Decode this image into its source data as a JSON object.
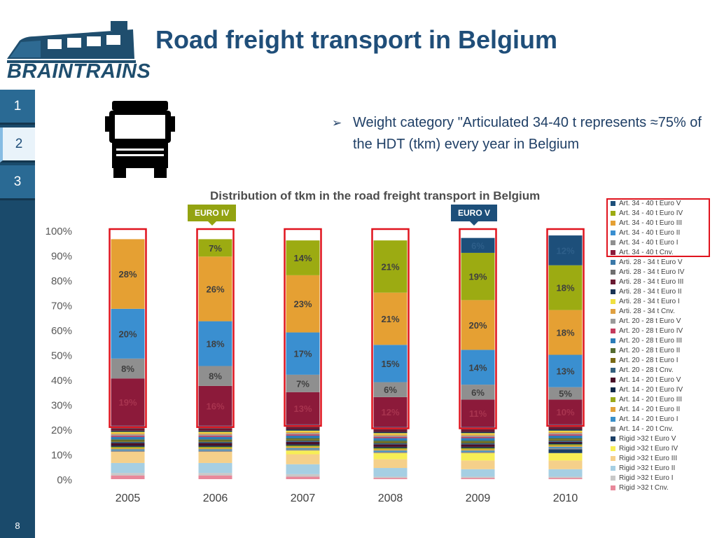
{
  "header": {
    "logo_text": "BRAINTRAINS",
    "title": "Road freight transport in Belgium"
  },
  "sidebar": {
    "items": [
      {
        "label": "1"
      },
      {
        "label": "2"
      },
      {
        "label": "3"
      }
    ],
    "active": 1,
    "page_number": "8"
  },
  "bullet": {
    "arrow": "➢",
    "text": "Weight category \"Articulated 34-40 t represents ≈75% of the HDT (tkm) every year in Belgium"
  },
  "badges": {
    "euro_iv": "EURO IV",
    "euro_v": "EURO V"
  },
  "colors": {
    "accent_title": "#1f4e79",
    "highlight_border": "#e0141e",
    "sidebar": "#1a4a6b"
  },
  "chart_data": {
    "type": "bar",
    "stacked": true,
    "title": "Distribution of tkm in the road freight transport in Belgium",
    "categories": [
      "2005",
      "2006",
      "2007",
      "2008",
      "2009",
      "2010"
    ],
    "ylim": [
      0,
      100
    ],
    "yticks": [
      "0%",
      "10%",
      "20%",
      "30%",
      "40%",
      "50%",
      "60%",
      "70%",
      "80%",
      "90%",
      "100%"
    ],
    "legend_position": "right",
    "highlighted_category": "Art. 34 - 40 t",
    "series": [
      {
        "name": "Rigid >32 t Cnv.",
        "color": "#e8889a",
        "values": [
          1.5,
          1.5,
          1.0,
          0.5,
          0.5,
          0.5
        ]
      },
      {
        "name": "Rigid >32 t Euro I",
        "color": "#c8c8c8",
        "values": [
          1.0,
          1.0,
          1.0,
          0.5,
          0.5,
          0.5
        ]
      },
      {
        "name": "Rigid >32 t Euro II",
        "color": "#a6cfe3",
        "values": [
          4.0,
          4.0,
          4.0,
          3.5,
          3.0,
          3.0
        ]
      },
      {
        "name": "Rigid >32 t Euro III",
        "color": "#f5d08a",
        "values": [
          4.5,
          4.5,
          4.0,
          3.5,
          3.5,
          3.5
        ]
      },
      {
        "name": "Rigid >32 t Euro IV",
        "color": "#f7ee55",
        "values": [
          0.0,
          0.0,
          1.5,
          2.5,
          3.0,
          3.0
        ]
      },
      {
        "name": "Rigid >32 t Euro V",
        "color": "#1b3f66",
        "values": [
          0.0,
          0.0,
          0.0,
          0.0,
          0.0,
          1.5
        ]
      },
      {
        "name": "Art. 14 - 20 t Cnv.",
        "color": "#8c8c8c",
        "values": [
          0.5,
          0.5,
          0.5,
          0.5,
          0.5,
          0.5
        ]
      },
      {
        "name": "Art. 14 - 20 t Euro I",
        "color": "#3a8fc8",
        "values": [
          0.5,
          0.5,
          0.5,
          0.5,
          0.5,
          0.5
        ]
      },
      {
        "name": "Art. 14 - 20 t Euro II",
        "color": "#e2a33a",
        "values": [
          0.5,
          0.5,
          0.5,
          0.5,
          0.5,
          0.5
        ]
      },
      {
        "name": "Art. 14 - 20 t Euro III",
        "color": "#9aa91a",
        "values": [
          0.5,
          0.5,
          0.5,
          0.5,
          0.5,
          0.5
        ]
      },
      {
        "name": "Art. 14 - 20 t Euro IV",
        "color": "#102a4a",
        "values": [
          0.5,
          0.5,
          0.5,
          0.5,
          0.5,
          0.5
        ]
      },
      {
        "name": "Art. 14 - 20 t Euro V",
        "color": "#4a1028",
        "values": [
          1.0,
          1.0,
          1.0,
          1.0,
          1.0,
          0.5
        ]
      },
      {
        "name": "Art. 20 - 28 t Cnv.",
        "color": "#34607e",
        "values": [
          0.5,
          0.5,
          0.5,
          0.5,
          0.5,
          0.5
        ]
      },
      {
        "name": "Art. 20 - 28 t Euro I",
        "color": "#7a6a14",
        "values": [
          0.5,
          0.5,
          0.5,
          0.5,
          0.5,
          0.5
        ]
      },
      {
        "name": "Art. 20 - 28 t Euro II",
        "color": "#556b2f",
        "values": [
          0.5,
          0.5,
          0.5,
          0.5,
          0.5,
          0.5
        ]
      },
      {
        "name": "Art. 20 - 28 t Euro III",
        "color": "#2b7cb8",
        "values": [
          1.0,
          1.0,
          1.0,
          1.0,
          1.0,
          1.0
        ]
      },
      {
        "name": "Art. 20 - 28 t Euro IV",
        "color": "#c43a5c",
        "values": [
          0.5,
          0.5,
          0.5,
          0.5,
          0.5,
          0.5
        ]
      },
      {
        "name": "Art. 20 - 28 t Euro V",
        "color": "#9a9a9a",
        "values": [
          0.5,
          0.5,
          0.5,
          0.5,
          0.5,
          0.5
        ]
      },
      {
        "name": "Arti. 28 - 34 t Cnv.",
        "color": "#e0a040",
        "values": [
          0.5,
          0.5,
          0.5,
          0.5,
          0.5,
          0.5
        ]
      },
      {
        "name": "Arti. 28 - 34 t Euro I",
        "color": "#f0e040",
        "values": [
          0.5,
          0.5,
          0.5,
          0.5,
          0.5,
          0.5
        ]
      },
      {
        "name": "Arti. 28 - 34 t Euro II",
        "color": "#1a3355",
        "values": [
          0.5,
          0.5,
          0.5,
          0.5,
          0.5,
          0.5
        ]
      },
      {
        "name": "Arti. 28 - 34 t Euro III",
        "color": "#6a1a32",
        "values": [
          1.0,
          1.0,
          1.0,
          1.0,
          1.0,
          1.0
        ]
      },
      {
        "name": "Arti. 28 - 34 t Euro IV",
        "color": "#6f6f6f",
        "values": [
          0.5,
          0.5,
          0.5,
          0.5,
          0.5,
          0.5
        ]
      },
      {
        "name": "Arti. 28 - 34 t Euro V",
        "color": "#3a78a8",
        "values": [
          0.5,
          0.5,
          0.5,
          0.5,
          0.5,
          0.5
        ]
      },
      {
        "name": "Art. 34 - 40 t Cnv.",
        "color": "#8c1a3a",
        "values": [
          19,
          16,
          13,
          12,
          11,
          10
        ]
      },
      {
        "name": "Art. 34 - 40 t Euro I",
        "color": "#8f8f8f",
        "values": [
          8,
          8,
          7,
          6,
          6,
          5
        ]
      },
      {
        "name": "Art. 34 - 40 t Euro II",
        "color": "#3a8fd0",
        "values": [
          20,
          18,
          17,
          15,
          14,
          13
        ]
      },
      {
        "name": "Art. 34 - 40 t Euro III",
        "color": "#e5a033",
        "values": [
          28,
          26,
          23,
          21,
          20,
          18
        ]
      },
      {
        "name": "Art. 34 - 40 t Euro IV",
        "color": "#9cab12",
        "values": [
          0,
          7,
          14,
          21,
          19,
          18
        ]
      },
      {
        "name": "Art. 34 - 40 t Euro V",
        "color": "#1d4f7a",
        "values": [
          0,
          0,
          0,
          0,
          6,
          12
        ]
      }
    ],
    "data_labels": [
      {
        "series": "Art. 34 - 40 t Euro V",
        "labels": [
          "",
          "",
          "",
          "",
          "6%",
          "12%"
        ]
      },
      {
        "series": "Art. 34 - 40 t Euro IV",
        "labels": [
          "",
          "7%",
          "14%",
          "21%",
          "19%",
          "18%"
        ]
      },
      {
        "series": "Art. 34 - 40 t Euro III",
        "labels": [
          "28%",
          "26%",
          "23%",
          "21%",
          "20%",
          "18%"
        ]
      },
      {
        "series": "Art. 34 - 40 t Euro II",
        "labels": [
          "20%",
          "18%",
          "17%",
          "15%",
          "14%",
          "13%"
        ]
      },
      {
        "series": "Art. 34 - 40 t Euro I",
        "labels": [
          "8%",
          "8%",
          "7%",
          "6%",
          "6%",
          "5%"
        ]
      },
      {
        "series": "Art. 34 - 40 t Cnv.",
        "labels": [
          "19%",
          "16%",
          "13%",
          "12%",
          "11%",
          "10%"
        ]
      }
    ]
  }
}
